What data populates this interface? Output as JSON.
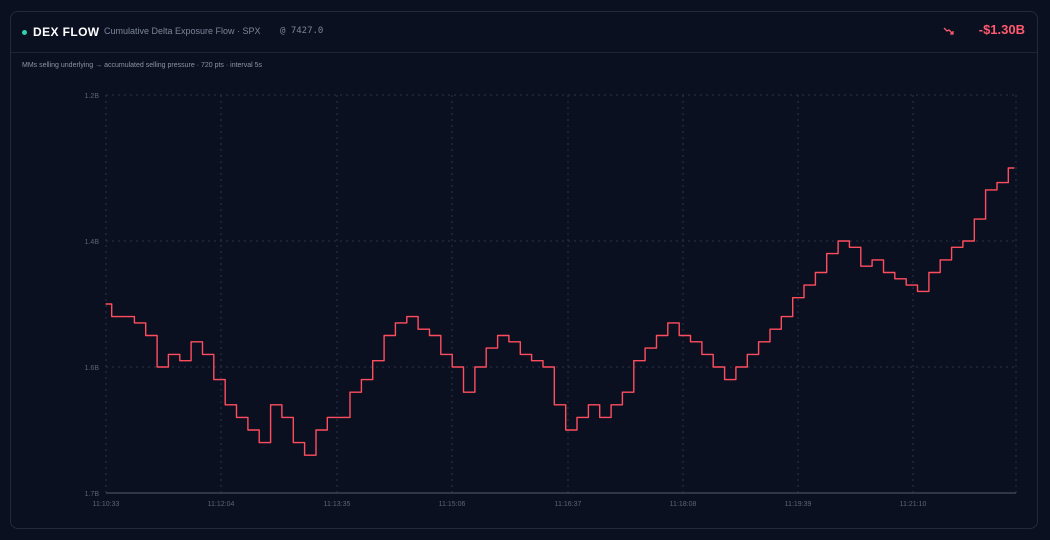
{
  "header": {
    "title": "DEX FLOW",
    "subtitle": "Cumulative Delta Exposure Flow · SPX",
    "price": "@ 7427.0",
    "delta": "-$1.30B"
  },
  "subheader": "MMs selling underlying → accumulated selling pressure · 720 pts · interval 5s",
  "colors": {
    "background": "#0b1020",
    "line": "#ff4d5e",
    "accent_dot": "#2dd4a7",
    "delta": "#ff5a6e",
    "grid": "#2a3347"
  },
  "chart_data": {
    "type": "line",
    "title": "Cumulative Delta Exposure Flow · SPX",
    "xlabel": "",
    "ylabel": "",
    "y_tick_labels": [
      "1.2B",
      "1.4B",
      "1.6B",
      "1.7B"
    ],
    "x_tick_labels": [
      "11:10:33",
      "11:12:04",
      "11:13:35",
      "11:15:06",
      "11:16:37",
      "11:18:08",
      "11:19:39",
      "11:21:10"
    ],
    "ylim": [
      -1.7,
      -1.2
    ],
    "grid": true,
    "series": [
      {
        "values": [
          -1.5,
          -1.52,
          -1.52,
          -1.53,
          -1.55,
          -1.6,
          -1.58,
          -1.59,
          -1.56,
          -1.58,
          -1.61,
          -1.63,
          -1.64,
          -1.65,
          -1.66,
          -1.63,
          -1.64,
          -1.66,
          -1.67,
          -1.65,
          -1.64,
          -1.64,
          -1.62,
          -1.61,
          -1.59,
          -1.55,
          -1.53,
          -1.52,
          -1.54,
          -1.55,
          -1.58,
          -1.6,
          -1.62,
          -1.6,
          -1.57,
          -1.55,
          -1.56,
          -1.58,
          -1.59,
          -1.6,
          -1.63,
          -1.65,
          -1.64,
          -1.63,
          -1.64,
          -1.63,
          -1.62,
          -1.59,
          -1.57,
          -1.55,
          -1.53,
          -1.55,
          -1.56,
          -1.58,
          -1.6,
          -1.61,
          -1.6,
          -1.58,
          -1.56,
          -1.54,
          -1.52,
          -1.49,
          -1.47,
          -1.45,
          -1.42,
          -1.4,
          -1.41,
          -1.44,
          -1.43,
          -1.45,
          -1.46,
          -1.47,
          -1.48,
          -1.45,
          -1.43,
          -1.41,
          -1.4,
          -1.37,
          -1.33,
          -1.32,
          -1.3
        ]
      }
    ]
  }
}
